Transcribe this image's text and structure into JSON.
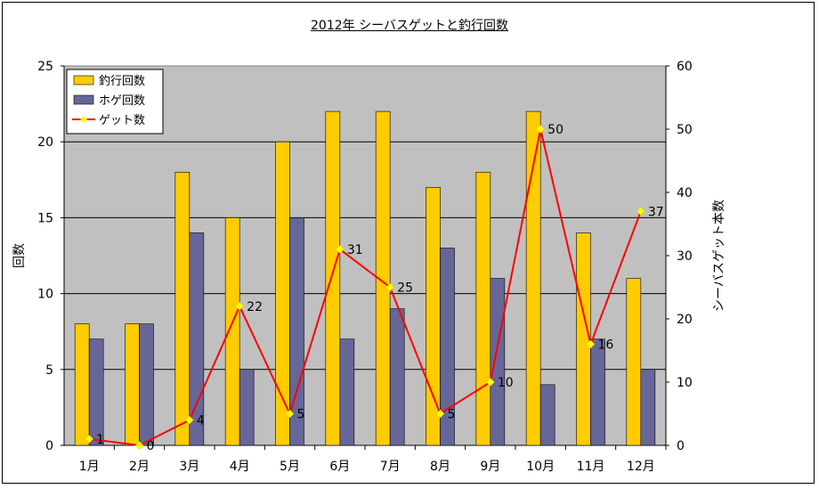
{
  "chart_data": {
    "type": "bar",
    "title": "2012年 シーバスゲットと釣行回数",
    "categories": [
      "1月",
      "2月",
      "3月",
      "4月",
      "5月",
      "6月",
      "7月",
      "8月",
      "9月",
      "10月",
      "11月",
      "12月"
    ],
    "series": [
      {
        "name": "釣行回数",
        "type": "bar",
        "axis": "left",
        "color": "#ffcc00",
        "values": [
          8,
          8,
          18,
          15,
          20,
          22,
          22,
          17,
          18,
          22,
          14,
          11
        ]
      },
      {
        "name": "ホゲ回数",
        "type": "bar",
        "axis": "left",
        "color": "#666699",
        "values": [
          7,
          8,
          14,
          5,
          15,
          7,
          9,
          13,
          11,
          4,
          7,
          5
        ]
      },
      {
        "name": "ゲット数",
        "type": "line",
        "axis": "right",
        "color": "#ff0000",
        "marker_color": "#ffff00",
        "values": [
          1,
          0,
          4,
          22,
          5,
          31,
          25,
          5,
          10,
          50,
          16,
          37
        ],
        "labels": [
          "1",
          "0",
          "4",
          "22",
          "5",
          "31",
          "25",
          "5",
          "10",
          "50",
          "16",
          "37"
        ]
      }
    ],
    "ylabel": "回数",
    "ylabel_right": "シーバスゲット本数",
    "ylim": [
      0,
      25
    ],
    "ylim_right": [
      0,
      60
    ],
    "yticks": [
      "0",
      "5",
      "10",
      "15",
      "20",
      "25"
    ],
    "yticks_right": [
      "0",
      "10",
      "20",
      "30",
      "40",
      "50",
      "60"
    ],
    "plot_background": "#c0c0c0",
    "grid": true,
    "legend_position": "top-left"
  }
}
